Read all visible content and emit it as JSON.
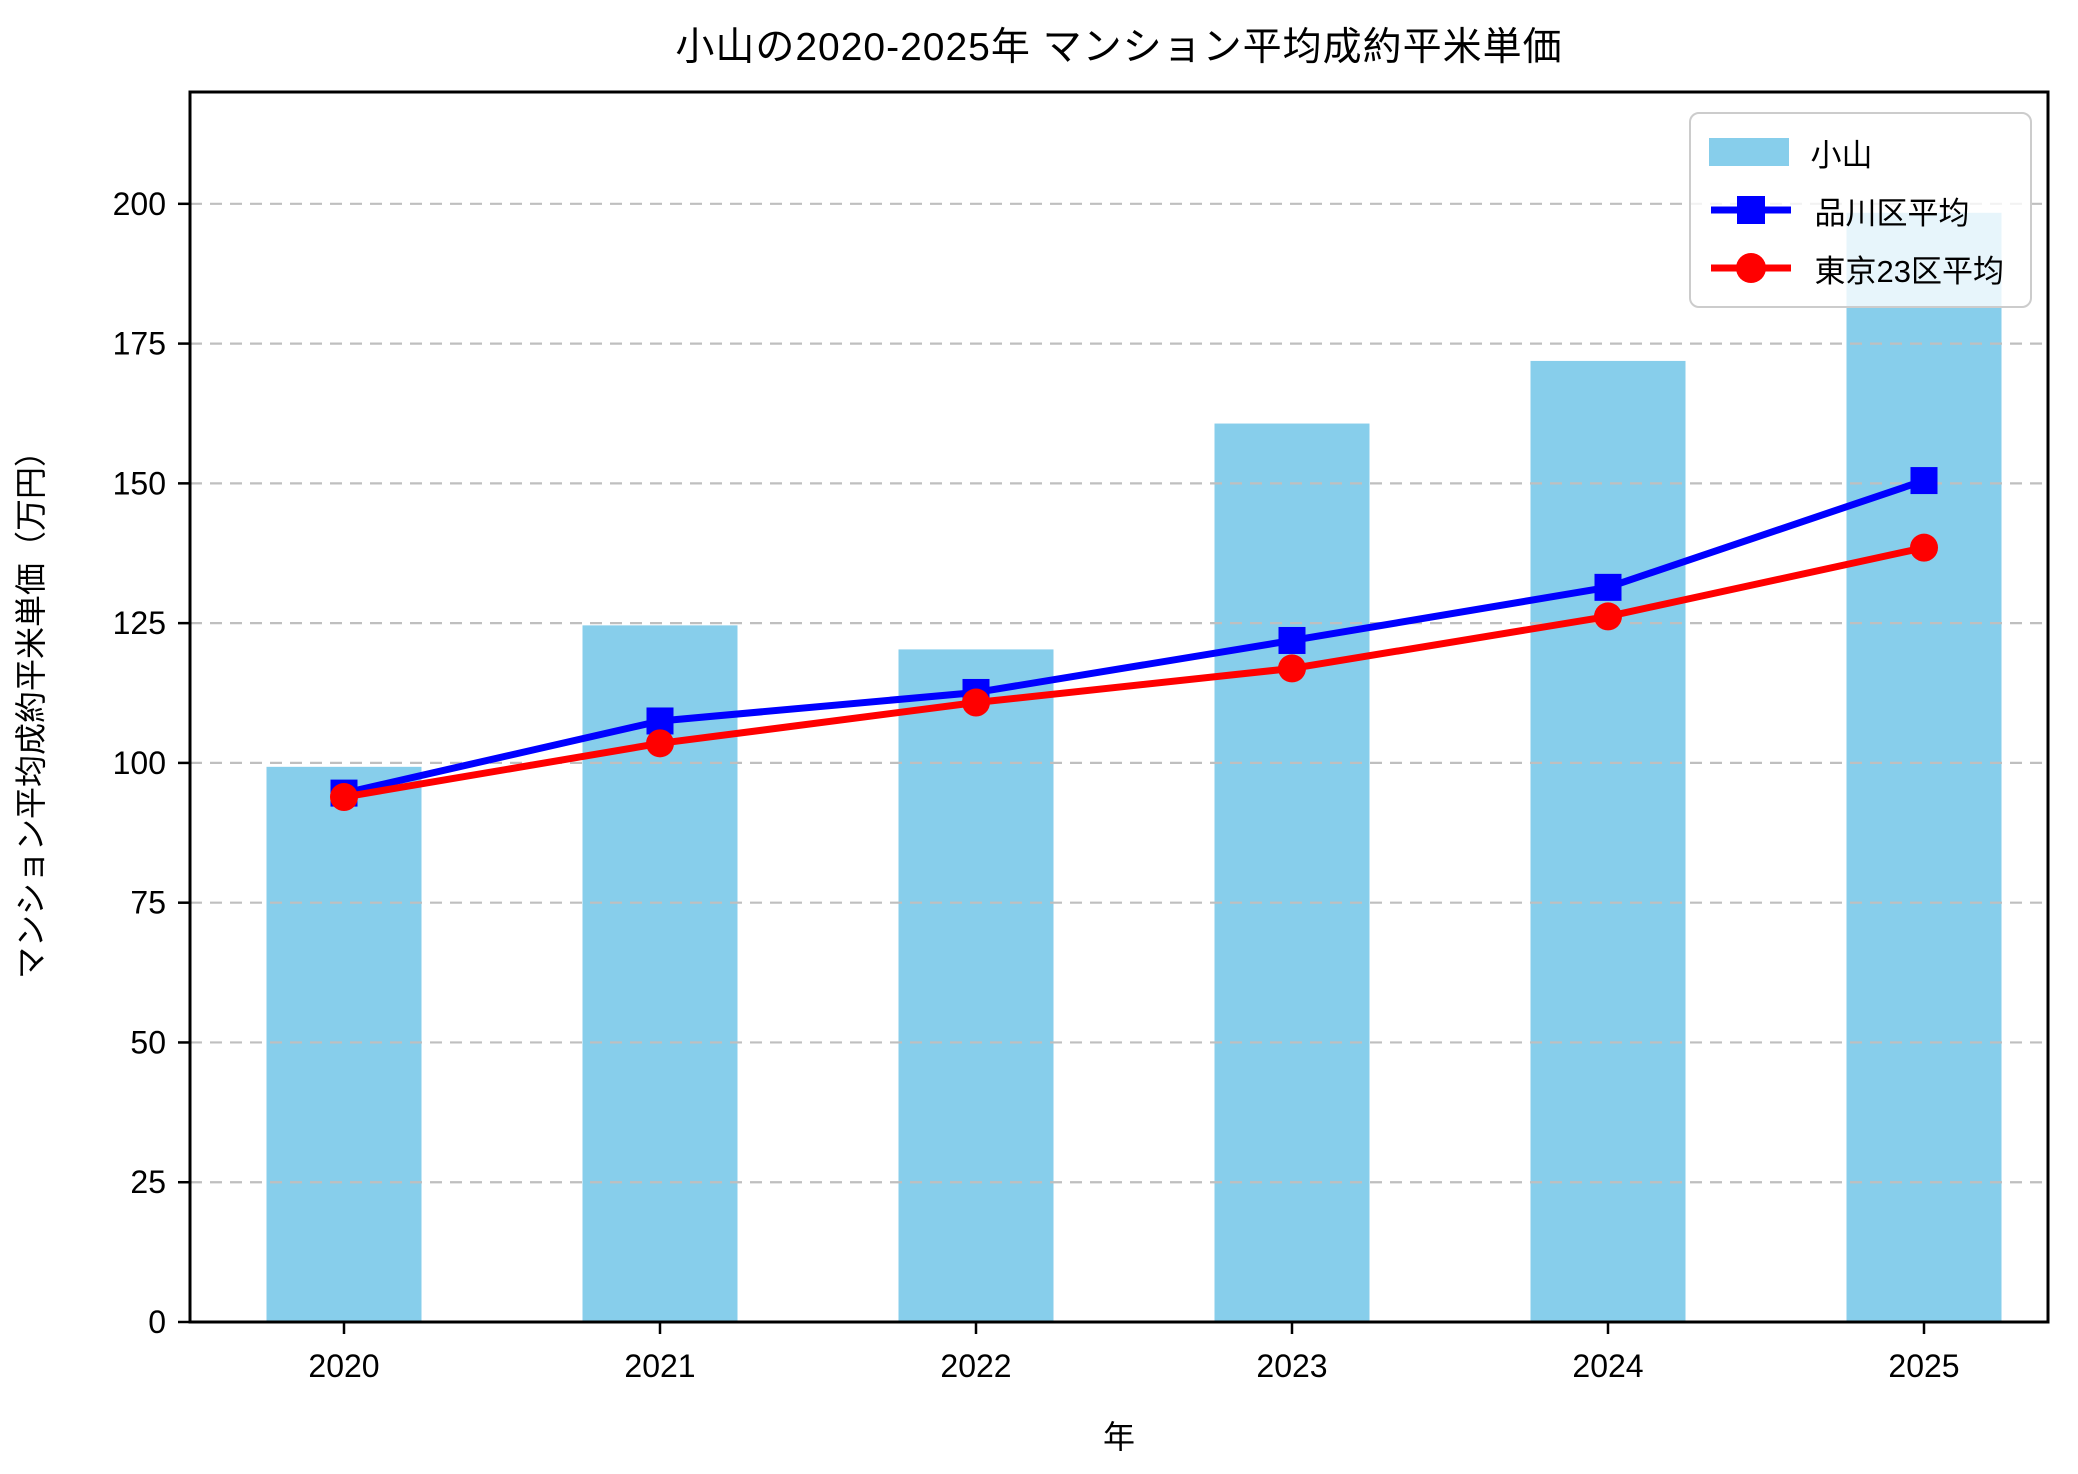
{
  "title": "小山の2020-2025年 マンション平均成約平米単価",
  "chart_data": {
    "type": "bar",
    "subtype": "bar+line combo",
    "categories": [
      "2020",
      "2021",
      "2022",
      "2023",
      "2024",
      "2025"
    ],
    "series": [
      {
        "name": "小山",
        "type": "bar",
        "color": "#87CEEB",
        "values": [
          99.3,
          124.6,
          120.3,
          160.7,
          171.9,
          198.4
        ]
      },
      {
        "name": "品川区平均",
        "type": "line",
        "color": "#0000FF",
        "marker": "square",
        "values": [
          94.6,
          107.5,
          112.6,
          121.9,
          131.4,
          150.5
        ]
      },
      {
        "name": "東京23区平均",
        "type": "line",
        "color": "#FF0000",
        "marker": "circle",
        "values": [
          93.9,
          103.5,
          110.8,
          116.9,
          126.2,
          138.5
        ]
      }
    ],
    "xlabel": "年",
    "ylabel": "マンション平均成約平米単価（万円）",
    "ylim": [
      0,
      220
    ],
    "yticks": [
      0,
      25,
      50,
      75,
      100,
      125,
      150,
      175,
      200
    ],
    "grid": true,
    "grid_style": "dashed",
    "grid_color": "#bfbfbf",
    "legend_position": "upper right",
    "axis_color": "#000000"
  }
}
